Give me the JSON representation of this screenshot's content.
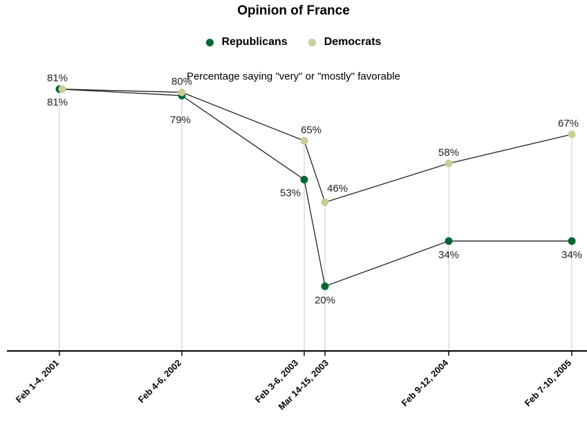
{
  "chart_data": {
    "type": "line",
    "title": "Opinion of France",
    "subtitle": "Percentage saying \"very\" or \"mostly\" favorable",
    "categories": [
      "Feb 1-4, 2001",
      "Feb 4-6, 2002",
      "Feb 3-6, 2003",
      "Mar 14-15, 2003",
      "Feb 9-12, 2004",
      "Feb 7-10, 2005"
    ],
    "series": [
      {
        "name": "Republicans",
        "values": [
          81,
          79,
          53,
          20,
          34,
          34
        ],
        "labels": [
          "81%",
          "79%",
          "53%",
          "20%",
          "34%",
          "34%"
        ],
        "color": "#006633"
      },
      {
        "name": "Democrats",
        "values": [
          81,
          80,
          65,
          46,
          58,
          67
        ],
        "labels": [
          "81%",
          "80%",
          "65%",
          "46%",
          "58%",
          "67%"
        ],
        "color": "#cccc99"
      }
    ],
    "ylim": [
      0,
      100
    ],
    "legend_position": "top-center",
    "grid": "vertical lines at each date"
  }
}
